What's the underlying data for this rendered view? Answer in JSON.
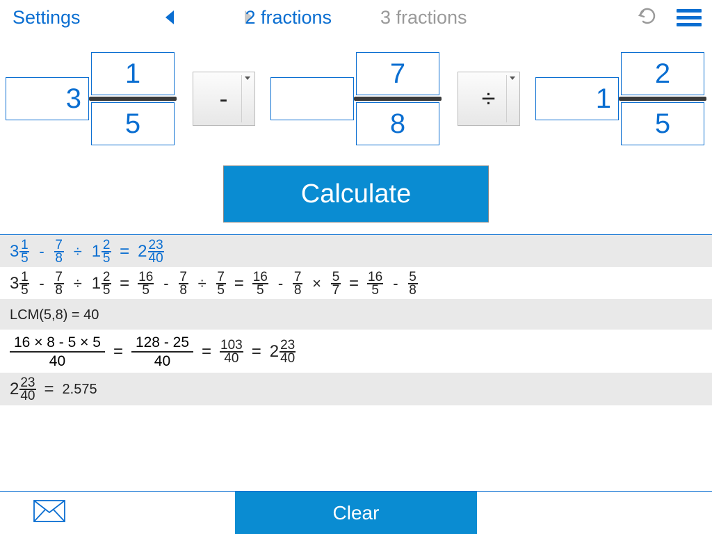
{
  "colors": {
    "primary": "#0a6ed1",
    "button": "#0a8cd2",
    "inactive": "#9a9a9a",
    "text": "#222222",
    "row_even": "#e9e9e9",
    "row_odd": "#ffffff",
    "frac_bar": "#3b3b3b"
  },
  "topbar": {
    "settings": "Settings",
    "tab2": "2 fractions",
    "tab3": "3 fractions",
    "activeTab": "tab3"
  },
  "inputs": {
    "f1": {
      "whole": "3",
      "num": "1",
      "den": "5"
    },
    "op1": "-",
    "f2": {
      "whole": "",
      "num": "7",
      "den": "8"
    },
    "op2": "÷",
    "f3": {
      "whole": "1",
      "num": "2",
      "den": "5"
    }
  },
  "calculateLabel": "Calculate",
  "resultLines": [
    {
      "bg": "even",
      "colorClass": "blue",
      "segments": [
        {
          "t": "mixed",
          "whole": "3",
          "num": "1",
          "den": "5"
        },
        {
          "t": "op",
          "v": "-"
        },
        {
          "t": "frac",
          "num": "7",
          "den": "8"
        },
        {
          "t": "op",
          "v": "÷"
        },
        {
          "t": "mixed",
          "whole": "1",
          "num": "2",
          "den": "5"
        },
        {
          "t": "eq"
        },
        {
          "t": "mixed",
          "whole": "2",
          "num": "23",
          "den": "40"
        }
      ]
    },
    {
      "bg": "odd",
      "segments": [
        {
          "t": "mixed",
          "whole": "3",
          "num": "1",
          "den": "5"
        },
        {
          "t": "op",
          "v": "-"
        },
        {
          "t": "frac",
          "num": "7",
          "den": "8"
        },
        {
          "t": "op",
          "v": "÷"
        },
        {
          "t": "mixed",
          "whole": "1",
          "num": "2",
          "den": "5"
        },
        {
          "t": "eq"
        },
        {
          "t": "frac",
          "num": "16",
          "den": "5"
        },
        {
          "t": "op",
          "v": "-"
        },
        {
          "t": "frac",
          "num": "7",
          "den": "8"
        },
        {
          "t": "op",
          "v": "÷"
        },
        {
          "t": "frac",
          "num": "7",
          "den": "5"
        },
        {
          "t": "eq"
        },
        {
          "t": "frac",
          "num": "16",
          "den": "5"
        },
        {
          "t": "op",
          "v": "-"
        },
        {
          "t": "frac",
          "num": "7",
          "den": "8"
        },
        {
          "t": "op",
          "v": "×"
        },
        {
          "t": "frac",
          "num": "5",
          "den": "7"
        },
        {
          "t": "eq"
        },
        {
          "t": "frac",
          "num": "16",
          "den": "5"
        },
        {
          "t": "op",
          "v": "-"
        },
        {
          "t": "frac",
          "num": "5",
          "den": "8"
        }
      ]
    },
    {
      "bg": "even",
      "segments": [
        {
          "t": "text",
          "v": "LCM(5,8)  = 40"
        }
      ]
    },
    {
      "bg": "odd",
      "segments": [
        {
          "t": "exprfrac",
          "num": "16 × 8  -  5 × 5",
          "den": "40"
        },
        {
          "t": "eq"
        },
        {
          "t": "exprfrac",
          "num": "128  -  25",
          "den": "40"
        },
        {
          "t": "eq"
        },
        {
          "t": "frac",
          "num": "103",
          "den": "40"
        },
        {
          "t": "eq"
        },
        {
          "t": "mixed",
          "whole": "2",
          "num": "23",
          "den": "40"
        }
      ]
    },
    {
      "bg": "even",
      "segments": [
        {
          "t": "mixed",
          "whole": "2",
          "num": "23",
          "den": "40"
        },
        {
          "t": "eq"
        },
        {
          "t": "text",
          "v": "2.575"
        }
      ]
    }
  ],
  "bottombar": {
    "clear": "Clear"
  }
}
